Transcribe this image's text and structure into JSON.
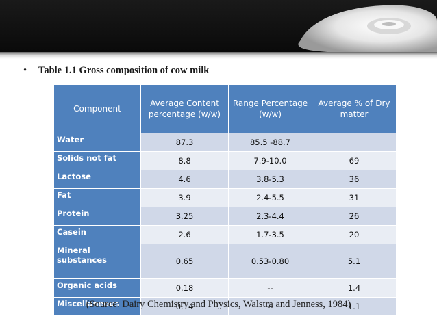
{
  "bullet": "•",
  "title": "Table 1.1 Gross composition of cow milk",
  "table": {
    "headers": [
      "Component",
      "Average Content percentage (w/w)",
      "Range Percentage (w/w)",
      "Average % of Dry matter"
    ],
    "rows": [
      {
        "component": "Water",
        "avg": "87.3",
        "range": "85.5 -88.7",
        "dry": ""
      },
      {
        "component": "Solids not fat",
        "avg": "8.8",
        "range": "7.9-10.0",
        "dry": "69"
      },
      {
        "component": "Lactose",
        "avg": "4.6",
        "range": "3.8-5.3",
        "dry": "36"
      },
      {
        "component": "Fat",
        "avg": "3.9",
        "range": "2.4-5.5",
        "dry": "31"
      },
      {
        "component": "Protein",
        "avg": "3.25",
        "range": "2.3-4.4",
        "dry": "26"
      },
      {
        "component": "Casein",
        "avg": "2.6",
        "range": "1.7-3.5",
        "dry": "20"
      },
      {
        "component": "Mineral substances",
        "avg": "0.65",
        "range": "0.53-0.80",
        "dry": "5.1"
      },
      {
        "component": "Organic acids",
        "avg": "0.18",
        "range": "--",
        "dry": "1.4"
      },
      {
        "component": "Miscellaneous",
        "avg": "0.14",
        "range": "--",
        "dry": "1.1"
      }
    ]
  },
  "source": "(Source: Dairy Chemistry and Physics, Walstra and Jenness, 1984)"
}
